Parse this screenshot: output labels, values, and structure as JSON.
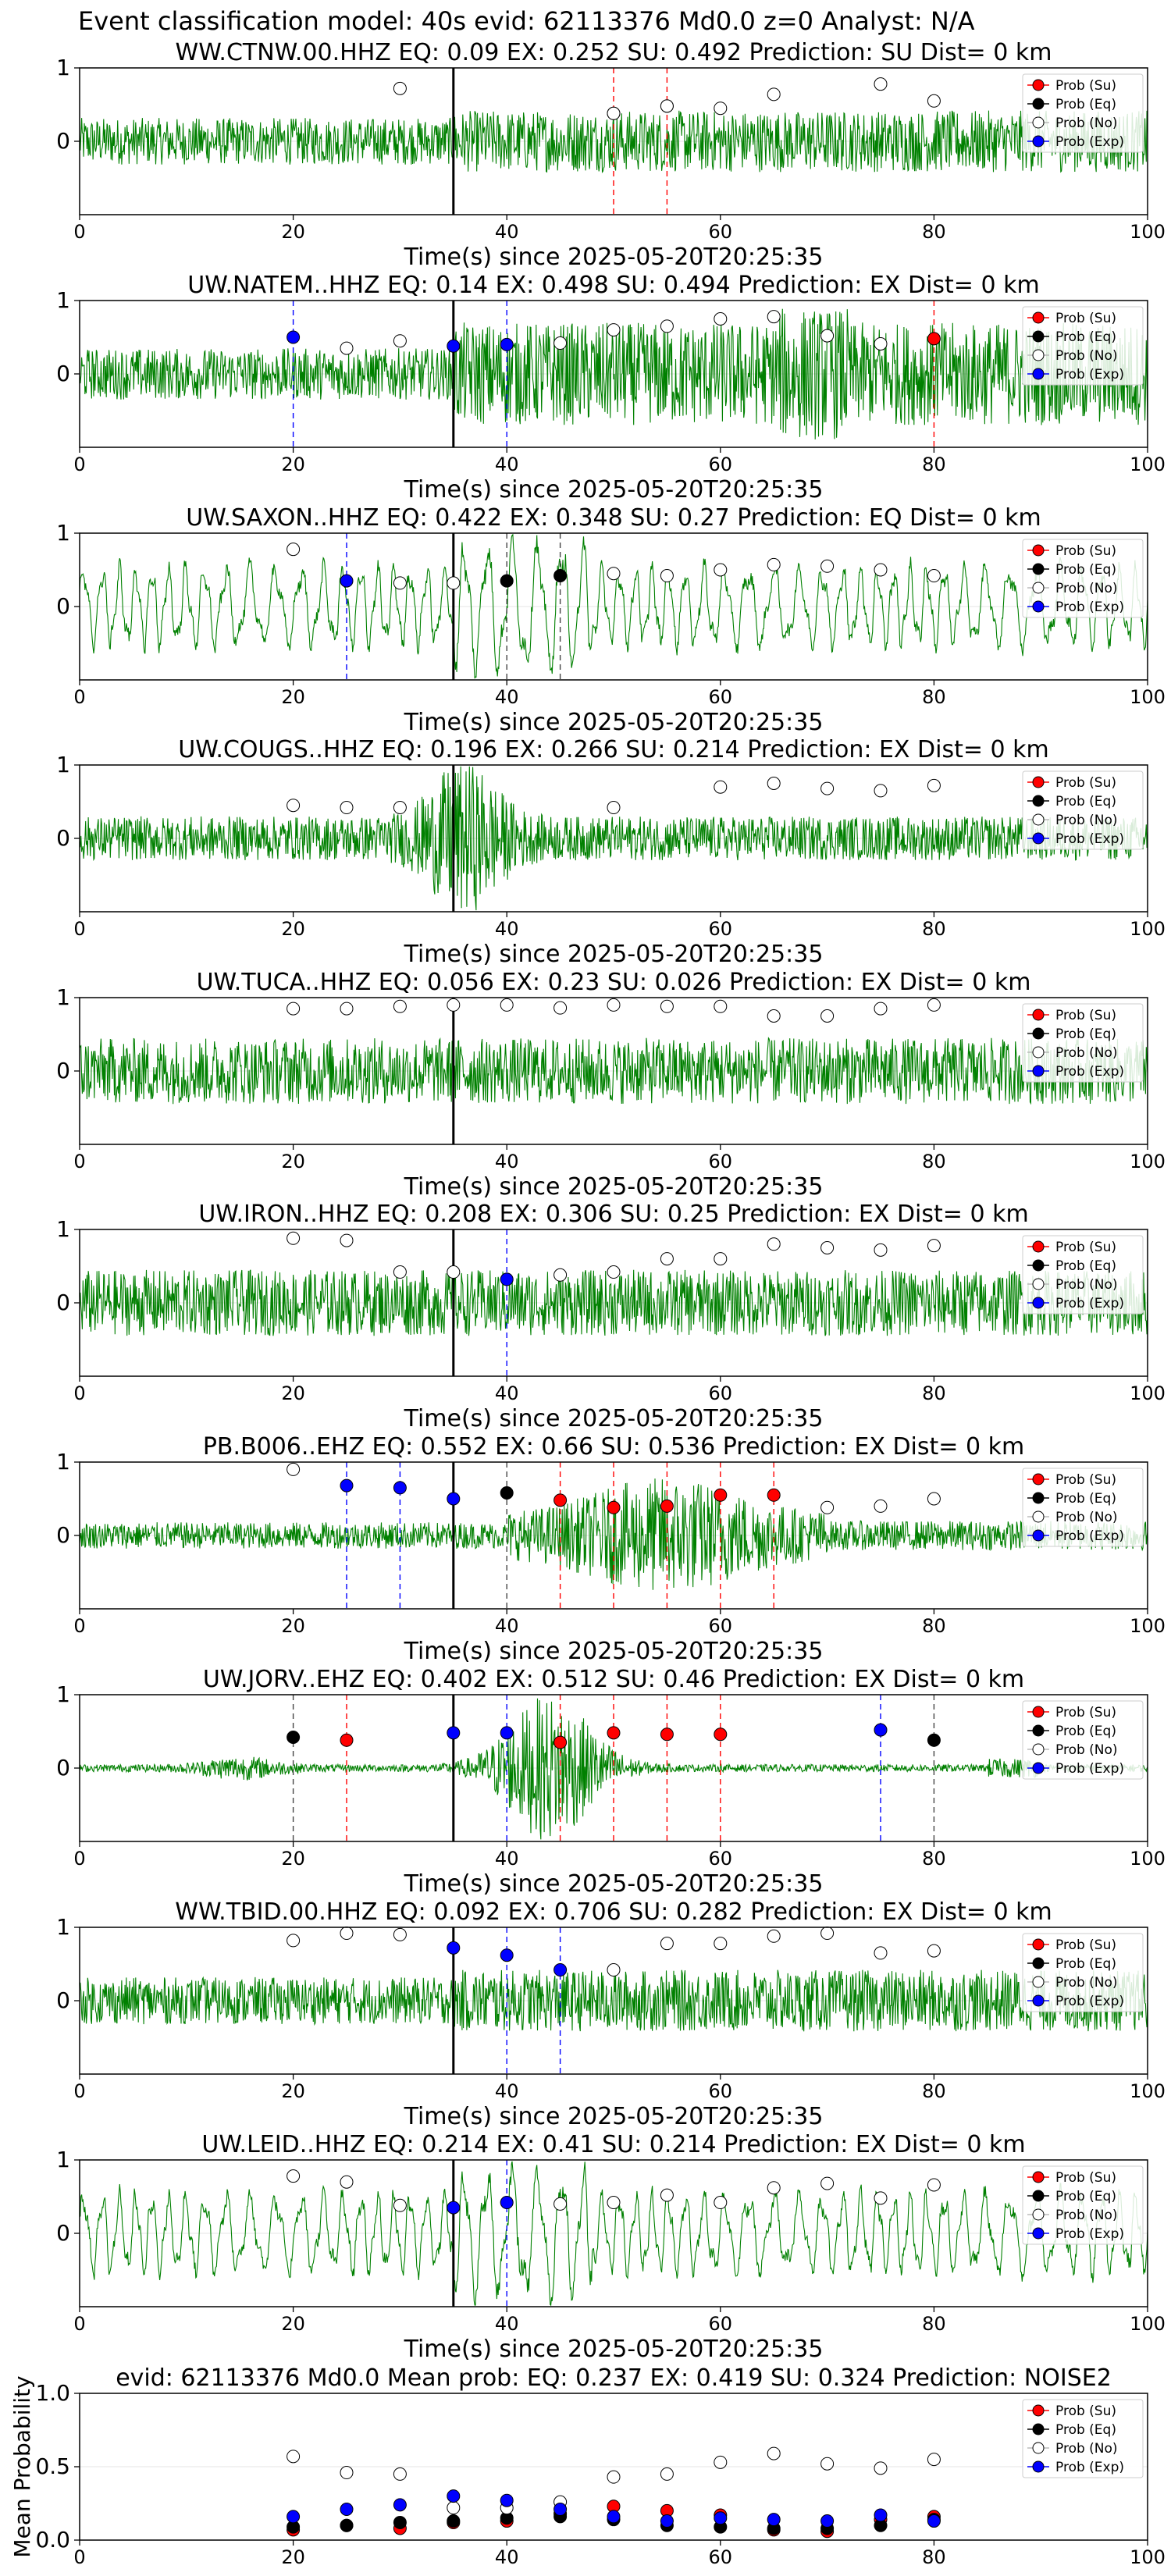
{
  "figure_title": "Event classification model: 40s evid: 62113376 Md0.0 z=0 Analyst: N/A",
  "legend_labels": [
    "Prob (Su)",
    "Prob (Eq)",
    "Prob (No)",
    "Prob (Exp)"
  ],
  "colors": {
    "waveform": "#008000",
    "su": "#ff0000",
    "eq": "#000000",
    "no": "#ffffff",
    "exp": "#0000ff"
  },
  "chart_data": [
    {
      "type": "line",
      "title": "WW.CTNW.00.HHZ   EQ: 0.09  EX: 0.252  SU: 0.492   Prediction: SU    Dist= 0 km",
      "xlabel": "Time(s) since 2025-05-20T20:25:35",
      "xlim": [
        0,
        100
      ],
      "ylim": [
        -1,
        1
      ],
      "xticks": [
        "0",
        "20",
        "40",
        "60",
        "80",
        "100"
      ],
      "yticks": [
        "0",
        "1"
      ],
      "pick_time": 35,
      "style": "spiky",
      "grid": true,
      "legend": "top-right",
      "no": [
        [
          30,
          0.72
        ],
        [
          50,
          0.38
        ],
        [
          55,
          0.48
        ],
        [
          60,
          0.45
        ],
        [
          65,
          0.64
        ],
        [
          75,
          0.78
        ],
        [
          80,
          0.55
        ]
      ],
      "su": [
        [
          50,
          0.38
        ],
        [
          55,
          0.48
        ]
      ],
      "eq": [],
      "exp": []
    },
    {
      "type": "line",
      "title": "UW.NATEM..HHZ   EQ: 0.14  EX: 0.498  SU: 0.494   Prediction: EX    Dist= 0 km",
      "xlabel": "Time(s) since 2025-05-20T20:25:35",
      "xlim": [
        0,
        100
      ],
      "ylim": [
        -1,
        1
      ],
      "xticks": [
        "0",
        "20",
        "40",
        "60",
        "80",
        "100"
      ],
      "yticks": [
        "0",
        "1"
      ],
      "pick_time": 35,
      "style": "dense",
      "grid": true,
      "legend": "top-right",
      "no": [
        [
          25,
          0.35
        ],
        [
          30,
          0.45
        ],
        [
          45,
          0.42
        ],
        [
          50,
          0.6
        ],
        [
          55,
          0.65
        ],
        [
          60,
          0.75
        ],
        [
          65,
          0.78
        ],
        [
          70,
          0.52
        ],
        [
          75,
          0.41
        ]
      ],
      "su": [
        [
          80,
          0.48
        ]
      ],
      "eq": [],
      "exp": [
        [
          20,
          0.5
        ],
        [
          35,
          0.38
        ],
        [
          40,
          0.4
        ]
      ]
    },
    {
      "type": "line",
      "title": "UW.SAXON..HHZ   EQ: 0.422  EX: 0.348  SU: 0.27   Prediction: EQ    Dist= 0 km",
      "xlabel": "Time(s) since 2025-05-20T20:25:35",
      "xlim": [
        0,
        100
      ],
      "ylim": [
        -1,
        1
      ],
      "xticks": [
        "0",
        "20",
        "40",
        "60",
        "80",
        "100"
      ],
      "yticks": [
        "0",
        "1"
      ],
      "pick_time": 35,
      "style": "wavy",
      "grid": true,
      "legend": "top-right",
      "no": [
        [
          20,
          0.78
        ],
        [
          30,
          0.32
        ],
        [
          35,
          0.32
        ],
        [
          50,
          0.45
        ],
        [
          55,
          0.42
        ],
        [
          60,
          0.5
        ],
        [
          65,
          0.57
        ],
        [
          70,
          0.55
        ],
        [
          75,
          0.5
        ],
        [
          80,
          0.42
        ]
      ],
      "su": [],
      "eq": [
        [
          40,
          0.35
        ],
        [
          45,
          0.42
        ]
      ],
      "exp": [
        [
          25,
          0.35
        ]
      ]
    },
    {
      "type": "line",
      "title": "UW.COUGS..HHZ   EQ: 0.196  EX: 0.266  SU: 0.214   Prediction: EX    Dist= 0 km",
      "xlabel": "Time(s) since 2025-05-20T20:25:35",
      "xlim": [
        0,
        100
      ],
      "ylim": [
        -1,
        1
      ],
      "xticks": [
        "0",
        "20",
        "40",
        "60",
        "80",
        "100"
      ],
      "yticks": [
        "0",
        "1"
      ],
      "pick_time": 35,
      "style": "burst",
      "grid": true,
      "legend": "top-right",
      "no": [
        [
          20,
          0.45
        ],
        [
          25,
          0.42
        ],
        [
          30,
          0.42
        ],
        [
          50,
          0.42
        ],
        [
          60,
          0.7
        ],
        [
          65,
          0.75
        ],
        [
          70,
          0.68
        ],
        [
          75,
          0.65
        ],
        [
          80,
          0.72
        ]
      ],
      "su": [],
      "eq": [],
      "exp": []
    },
    {
      "type": "line",
      "title": "UW.TUCA..HHZ   EQ: 0.056  EX: 0.23  SU: 0.026   Prediction: EX    Dist= 0 km",
      "xlabel": "Time(s) since 2025-05-20T20:25:35",
      "xlim": [
        0,
        100
      ],
      "ylim": [
        -1,
        1
      ],
      "xticks": [
        "0",
        "20",
        "40",
        "60",
        "80",
        "100"
      ],
      "yticks": [
        "0",
        "1"
      ],
      "pick_time": 35,
      "style": "noisy",
      "grid": true,
      "legend": "top-right",
      "no": [
        [
          20,
          0.85
        ],
        [
          25,
          0.85
        ],
        [
          30,
          0.88
        ],
        [
          35,
          0.9
        ],
        [
          40,
          0.9
        ],
        [
          45,
          0.86
        ],
        [
          50,
          0.9
        ],
        [
          55,
          0.88
        ],
        [
          60,
          0.88
        ],
        [
          65,
          0.75
        ],
        [
          70,
          0.75
        ],
        [
          75,
          0.85
        ],
        [
          80,
          0.9
        ]
      ],
      "su": [],
      "eq": [],
      "exp": []
    },
    {
      "type": "line",
      "title": "UW.IRON..HHZ   EQ: 0.208  EX: 0.306  SU: 0.25   Prediction: EX    Dist= 0 km",
      "xlabel": "Time(s) since 2025-05-20T20:25:35",
      "xlim": [
        0,
        100
      ],
      "ylim": [
        -1,
        1
      ],
      "xticks": [
        "0",
        "20",
        "40",
        "60",
        "80",
        "100"
      ],
      "yticks": [
        "0",
        "1"
      ],
      "pick_time": 35,
      "style": "noisy",
      "grid": true,
      "legend": "top-right",
      "no": [
        [
          20,
          0.88
        ],
        [
          25,
          0.85
        ],
        [
          30,
          0.42
        ],
        [
          35,
          0.42
        ],
        [
          45,
          0.38
        ],
        [
          50,
          0.42
        ],
        [
          55,
          0.6
        ],
        [
          60,
          0.6
        ],
        [
          65,
          0.8
        ],
        [
          70,
          0.75
        ],
        [
          75,
          0.72
        ],
        [
          80,
          0.78
        ]
      ],
      "su": [],
      "eq": [],
      "exp": [
        [
          40,
          0.32
        ]
      ]
    },
    {
      "type": "line",
      "title": "PB.B006..EHZ   EQ: 0.552  EX: 0.66  SU: 0.536   Prediction: EX    Dist= 0 km",
      "xlabel": "Time(s) since 2025-05-20T20:25:35",
      "xlim": [
        0,
        100
      ],
      "ylim": [
        -1,
        1
      ],
      "xticks": [
        "0",
        "20",
        "40",
        "60",
        "80",
        "100"
      ],
      "yticks": [
        "0",
        "1"
      ],
      "pick_time": 35,
      "style": "late",
      "grid": true,
      "legend": "top-right",
      "no": [
        [
          20,
          0.9
        ],
        [
          70,
          0.38
        ],
        [
          75,
          0.4
        ],
        [
          80,
          0.5
        ]
      ],
      "su": [
        [
          45,
          0.48
        ],
        [
          50,
          0.38
        ],
        [
          55,
          0.4
        ],
        [
          60,
          0.55
        ],
        [
          65,
          0.55
        ]
      ],
      "eq": [
        [
          40,
          0.58
        ]
      ],
      "exp": [
        [
          25,
          0.68
        ],
        [
          30,
          0.65
        ],
        [
          35,
          0.5
        ]
      ]
    },
    {
      "type": "line",
      "title": "UW.JORV..EHZ   EQ: 0.402  EX: 0.512  SU: 0.46   Prediction: EX    Dist= 0 km",
      "xlabel": "Time(s) since 2025-05-20T20:25:35",
      "xlim": [
        0,
        100
      ],
      "ylim": [
        -1,
        1
      ],
      "xticks": [
        "0",
        "20",
        "40",
        "60",
        "80",
        "100"
      ],
      "yticks": [
        "0",
        "1"
      ],
      "pick_time": 35,
      "style": "quake",
      "grid": true,
      "legend": "top-right",
      "no": [],
      "su": [
        [
          25,
          0.38
        ],
        [
          45,
          0.35
        ],
        [
          50,
          0.48
        ],
        [
          55,
          0.46
        ],
        [
          60,
          0.46
        ]
      ],
      "eq": [
        [
          20,
          0.42
        ],
        [
          80,
          0.38
        ]
      ],
      "exp": [
        [
          35,
          0.48
        ],
        [
          40,
          0.48
        ],
        [
          75,
          0.52
        ]
      ]
    },
    {
      "type": "line",
      "title": "WW.TBID.00.HHZ   EQ: 0.092  EX: 0.706  SU: 0.282   Prediction: EX    Dist= 0 km",
      "xlabel": "Time(s) since 2025-05-20T20:25:35",
      "xlim": [
        0,
        100
      ],
      "ylim": [
        -1,
        1
      ],
      "xticks": [
        "0",
        "20",
        "40",
        "60",
        "80",
        "100"
      ],
      "yticks": [
        "0",
        "1"
      ],
      "pick_time": 35,
      "style": "spiky",
      "grid": true,
      "legend": "top-right",
      "no": [
        [
          20,
          0.82
        ],
        [
          25,
          0.92
        ],
        [
          30,
          0.9
        ],
        [
          50,
          0.42
        ],
        [
          55,
          0.78
        ],
        [
          60,
          0.78
        ],
        [
          65,
          0.88
        ],
        [
          70,
          0.92
        ],
        [
          75,
          0.65
        ],
        [
          80,
          0.68
        ]
      ],
      "su": [],
      "eq": [],
      "exp": [
        [
          35,
          0.72
        ],
        [
          40,
          0.62
        ],
        [
          45,
          0.42
        ]
      ]
    },
    {
      "type": "line",
      "title": "UW.LEID..HHZ   EQ: 0.214  EX: 0.41  SU: 0.214   Prediction: EX    Dist= 0 km",
      "xlabel": "Time(s) since 2025-05-20T20:25:35",
      "xlim": [
        0,
        100
      ],
      "ylim": [
        -1,
        1
      ],
      "xticks": [
        "0",
        "20",
        "40",
        "60",
        "80",
        "100"
      ],
      "yticks": [
        "0",
        "1"
      ],
      "pick_time": 35,
      "style": "wavy",
      "grid": true,
      "legend": "top-right",
      "no": [
        [
          20,
          0.78
        ],
        [
          25,
          0.7
        ],
        [
          30,
          0.38
        ],
        [
          45,
          0.4
        ],
        [
          50,
          0.42
        ],
        [
          55,
          0.52
        ],
        [
          60,
          0.42
        ],
        [
          65,
          0.62
        ],
        [
          70,
          0.68
        ],
        [
          75,
          0.48
        ],
        [
          80,
          0.66
        ]
      ],
      "su": [],
      "eq": [],
      "exp": [
        [
          35,
          0.35
        ],
        [
          40,
          0.42
        ]
      ]
    },
    {
      "type": "scatter",
      "title": "evid: 62113376  Md0.0   Mean prob:    EQ: 0.237  EX: 0.419  SU: 0.324   Prediction: NOISE2",
      "ylabel": "Mean Probability",
      "xlim": [
        0,
        100
      ],
      "ylim": [
        0,
        1
      ],
      "xticks": [
        "0",
        "20",
        "40",
        "60",
        "80",
        "100"
      ],
      "yticks": [
        "0.0",
        "0.5",
        "1.0"
      ],
      "grid": true,
      "legend": "top-right",
      "no": [
        [
          20,
          0.57
        ],
        [
          25,
          0.46
        ],
        [
          30,
          0.45
        ],
        [
          35,
          0.22
        ],
        [
          40,
          0.22
        ],
        [
          45,
          0.26
        ],
        [
          50,
          0.43
        ],
        [
          55,
          0.45
        ],
        [
          60,
          0.53
        ],
        [
          65,
          0.59
        ],
        [
          70,
          0.52
        ],
        [
          75,
          0.49
        ],
        [
          80,
          0.55
        ]
      ],
      "su": [
        [
          20,
          0.07
        ],
        [
          25,
          0.1
        ],
        [
          30,
          0.08
        ],
        [
          35,
          0.12
        ],
        [
          40,
          0.13
        ],
        [
          45,
          0.18
        ],
        [
          50,
          0.23
        ],
        [
          55,
          0.2
        ],
        [
          60,
          0.17
        ],
        [
          65,
          0.07
        ],
        [
          70,
          0.06
        ],
        [
          75,
          0.14
        ],
        [
          80,
          0.16
        ]
      ],
      "eq": [
        [
          20,
          0.09
        ],
        [
          25,
          0.1
        ],
        [
          30,
          0.12
        ],
        [
          35,
          0.13
        ],
        [
          40,
          0.15
        ],
        [
          45,
          0.16
        ],
        [
          50,
          0.14
        ],
        [
          55,
          0.1
        ],
        [
          60,
          0.09
        ],
        [
          65,
          0.08
        ],
        [
          70,
          0.08
        ],
        [
          75,
          0.1
        ],
        [
          80,
          0.14
        ]
      ],
      "exp": [
        [
          20,
          0.16
        ],
        [
          25,
          0.21
        ],
        [
          30,
          0.24
        ],
        [
          35,
          0.3
        ],
        [
          40,
          0.27
        ],
        [
          45,
          0.21
        ],
        [
          50,
          0.16
        ],
        [
          55,
          0.13
        ],
        [
          60,
          0.15
        ],
        [
          65,
          0.14
        ],
        [
          70,
          0.13
        ],
        [
          75,
          0.17
        ],
        [
          80,
          0.13
        ]
      ]
    }
  ]
}
